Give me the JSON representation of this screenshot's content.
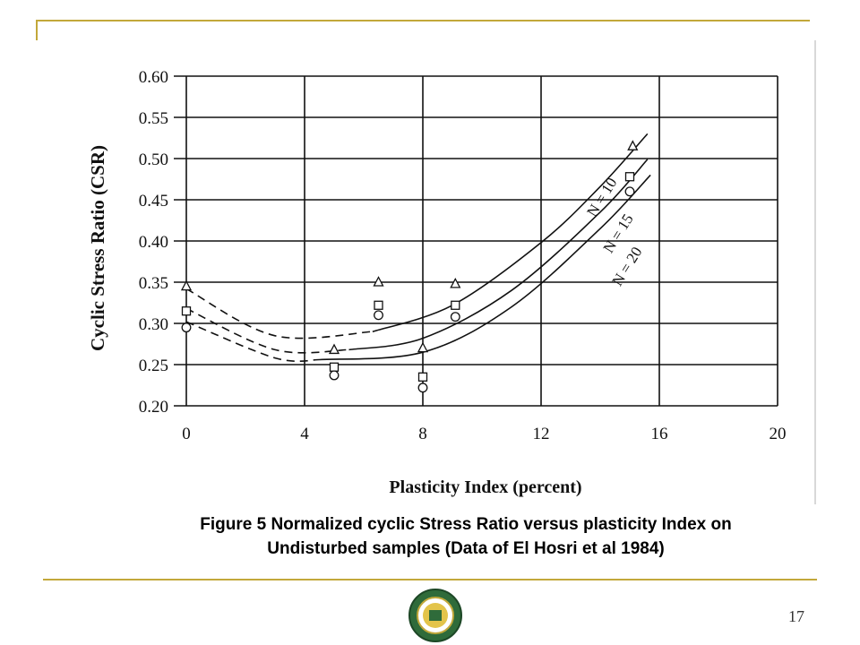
{
  "chart_data": {
    "type": "scatter",
    "title": "",
    "xlabel": "Plasticity Index (percent)",
    "ylabel": "Cyclic Stress Ratio (CSR)",
    "xlim": [
      0,
      20
    ],
    "ylim": [
      0.2,
      0.6
    ],
    "x_ticks": [
      "0",
      "4",
      "8",
      "12",
      "16",
      "20"
    ],
    "y_ticks": [
      "0.20",
      "0.25",
      "0.30",
      "0.35",
      "0.40",
      "0.45",
      "0.50",
      "0.55",
      "0.60"
    ],
    "grid": true,
    "series": [
      {
        "name": "N = 10",
        "marker": "triangle",
        "x": [
          0,
          5,
          6.5,
          8,
          9.1,
          15.1
        ],
        "y": [
          0.345,
          0.268,
          0.35,
          0.27,
          0.348,
          0.515
        ]
      },
      {
        "name": "N = 15",
        "marker": "square",
        "x": [
          0,
          5,
          6.5,
          8,
          9.1,
          15
        ],
        "y": [
          0.315,
          0.247,
          0.322,
          0.235,
          0.322,
          0.478
        ]
      },
      {
        "name": "N = 20",
        "marker": "circle",
        "x": [
          0,
          5,
          6.5,
          8,
          9.1,
          15
        ],
        "y": [
          0.295,
          0.237,
          0.31,
          0.222,
          0.308,
          0.46
        ]
      }
    ],
    "fit_curves": [
      {
        "label": "N = 10",
        "dashed_x": [
          0,
          3,
          6.3
        ],
        "dashed_y": [
          0.342,
          0.285,
          0.29
        ],
        "solid_x": [
          6.3,
          9,
          12,
          14,
          15.6
        ],
        "solid_y": [
          0.29,
          0.322,
          0.398,
          0.466,
          0.53
        ]
      },
      {
        "label": "N = 15",
        "dashed_x": [
          0,
          3,
          5.5
        ],
        "dashed_y": [
          0.318,
          0.268,
          0.268
        ],
        "solid_x": [
          5.5,
          8,
          11,
          14,
          15.6
        ],
        "solid_y": [
          0.268,
          0.282,
          0.34,
          0.435,
          0.499
        ]
      },
      {
        "label": "N = 20",
        "dashed_x": [
          0,
          3,
          4.5
        ],
        "dashed_y": [
          0.302,
          0.258,
          0.256
        ],
        "solid_x": [
          4.5,
          8,
          11,
          14,
          15.7
        ],
        "solid_y": [
          0.256,
          0.265,
          0.32,
          0.415,
          0.48
        ]
      }
    ]
  },
  "caption": {
    "line1": "Figure 5 Normalized cyclic Stress Ratio versus plasticity Index on",
    "line2": "Undisturbed samples (Data of El Hosri et al 1984)"
  },
  "page_number": "17",
  "colors": {
    "frame": "#c2a83a",
    "logo_ring": "#2f6b3a",
    "logo_center": "#e3c44a"
  }
}
